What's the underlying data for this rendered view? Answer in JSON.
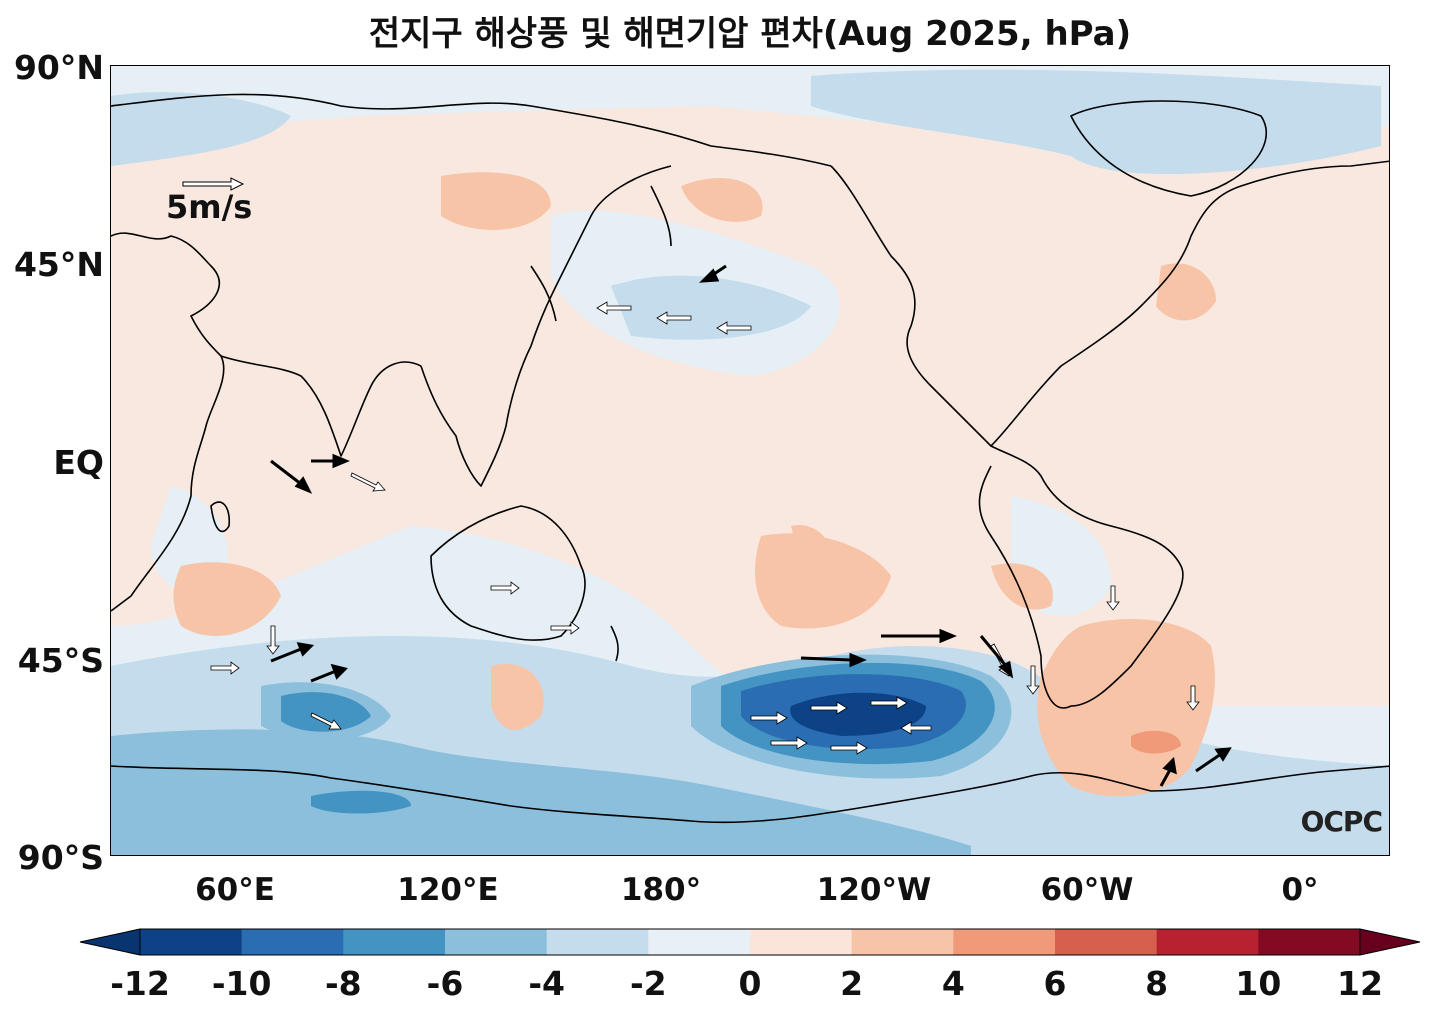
{
  "title": "전지구 해상풍 및 해면기압 편차(Aug 2025, hPa)",
  "lat_labels": [
    "90°N",
    "45°N",
    "EQ",
    "45°S",
    "90°S"
  ],
  "lon_labels": [
    "60°E",
    "120°E",
    "180°",
    "120°W",
    "60°W",
    "0°"
  ],
  "reference_vector_label": "5m/s",
  "logo_text": "OCPC",
  "colorbar": {
    "ticks": [
      "-12",
      "-10",
      "-8",
      "-6",
      "-4",
      "-2",
      "0",
      "2",
      "4",
      "6",
      "8",
      "10",
      "12"
    ],
    "colors": [
      "#083470",
      "#0d4386",
      "#2a6db3",
      "#4393c3",
      "#8bbfdc",
      "#c4dcec",
      "#e8f0f6",
      "#fbe4da",
      "#f8c4a8",
      "#f09a7a",
      "#d6604d",
      "#b8212f",
      "#840a24",
      "#67001f"
    ]
  }
}
